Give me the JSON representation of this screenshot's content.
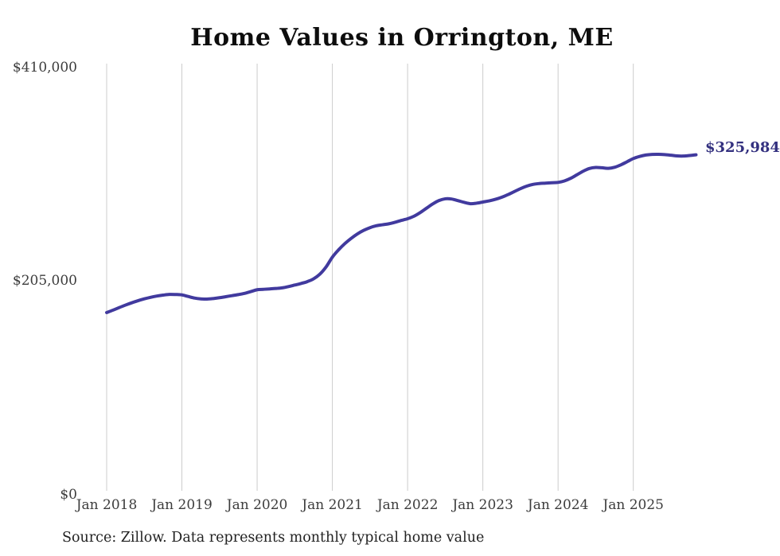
{
  "title": "Home Values in Orrington, ME",
  "source_note": "Source: Zillow. Data represents monthly typical home value",
  "end_label": "$325,984",
  "colors": {
    "background": "#ffffff",
    "line": "#413a9e",
    "end_label_text": "#33307f",
    "gridline": "#cccccc",
    "axis_text": "#3c3c3c",
    "title_text": "#0d0d0d",
    "source_text": "#222222"
  },
  "chart_data": {
    "type": "line",
    "title": "Home Values in Orrington, ME",
    "xlabel": "",
    "ylabel": "",
    "ylim": [
      0,
      410000
    ],
    "y_ticks": [
      410000,
      205000,
      0
    ],
    "y_tick_labels": [
      "$410,000",
      "$205,000",
      "$0"
    ],
    "x_tick_labels": [
      "Jan 2018",
      "Jan 2019",
      "Jan 2020",
      "Jan 2021",
      "Jan 2022",
      "Jan 2023",
      "Jan 2024",
      "Jan 2025"
    ],
    "grid": "vertical-gridlines-only",
    "legend": "none",
    "annotation_final_value": "$325,984",
    "series": [
      {
        "name": "Monthly typical home value",
        "x_start_month": "2018-01",
        "x_end_month": "2025-11",
        "final_value": 325984,
        "values": [
          174000,
          176300,
          178800,
          181200,
          183400,
          185400,
          187200,
          188700,
          189900,
          190800,
          191500,
          191400,
          191000,
          189500,
          188000,
          187200,
          187000,
          187500,
          188300,
          189300,
          190300,
          191300,
          192500,
          194200,
          196000,
          196400,
          196800,
          197200,
          197800,
          199000,
          200500,
          202000,
          203800,
          206500,
          211000,
          218000,
          227400,
          234500,
          240500,
          245500,
          249800,
          253200,
          255800,
          257600,
          258600,
          259500,
          261000,
          262800,
          264400,
          266800,
          270300,
          274500,
          278600,
          281900,
          283600,
          283400,
          281900,
          280200,
          278900,
          279400,
          280500,
          281600,
          283100,
          285100,
          287600,
          290500,
          293400,
          295800,
          297500,
          298300,
          298700,
          299100,
          299400,
          300800,
          303300,
          306700,
          310200,
          312800,
          313800,
          313500,
          313000,
          314000,
          316300,
          319300,
          322400,
          324400,
          325800,
          326400,
          326500,
          326200,
          325600,
          324900,
          324800,
          325300,
          325984
        ]
      }
    ]
  }
}
